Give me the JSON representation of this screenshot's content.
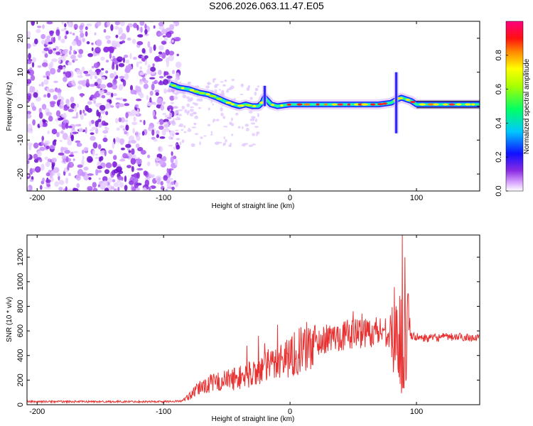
{
  "title": "S206.2026.063.11.47.E05",
  "chart_data": [
    {
      "type": "heatmap",
      "name": "spectrogram",
      "xlabel": "Height of straight line (km)",
      "ylabel": "Frequency (Hz)",
      "xlim": [
        -208,
        150
      ],
      "ylim": [
        -25,
        25
      ],
      "xticks": [
        -200,
        -100,
        0,
        100
      ],
      "xtick_labels": [
        "-200",
        "-100",
        "0",
        "100"
      ],
      "yticks": [
        -20,
        -10,
        0,
        10,
        20
      ],
      "ytick_labels": [
        "-20",
        "-10",
        "0",
        "10",
        "20"
      ],
      "noise_region_x": [
        -208,
        -88
      ],
      "signal_track": {
        "x": [
          -95,
          -88,
          -80,
          -72,
          -65,
          -58,
          -52,
          -45,
          -40,
          -35,
          -30,
          -25,
          -22,
          -20,
          -15,
          -10,
          0,
          10,
          20,
          30,
          40,
          50,
          60,
          70,
          80,
          85,
          88,
          92,
          96,
          100,
          110,
          120,
          130,
          140,
          150
        ],
        "y": [
          6.5,
          5.5,
          5,
          4,
          3.5,
          2.5,
          1.5,
          0.5,
          0,
          0.5,
          0,
          0,
          1,
          2.5,
          0.5,
          0,
          0.5,
          0.5,
          0.5,
          0.5,
          0.5,
          0.5,
          0.5,
          0.5,
          1,
          2,
          2.5,
          2,
          1.5,
          0.5,
          0.5,
          0.5,
          0.5,
          0.5,
          0.5
        ]
      },
      "features": [
        {
          "x": -20,
          "y_range": [
            0,
            6
          ]
        },
        {
          "x": 84,
          "y_range": [
            -8,
            10
          ]
        }
      ]
    },
    {
      "type": "colorbar",
      "label": "Normalized spectral amplitude",
      "range": [
        0,
        1
      ],
      "ticks": [
        0.0,
        0.2,
        0.4,
        0.6,
        0.8
      ],
      "tick_labels": [
        "0.0",
        "0.2",
        "0.4",
        "0.6",
        "0.8"
      ],
      "colormap": [
        "#ffffff",
        "#cc66ff",
        "#6600cc",
        "#0000ff",
        "#00ccff",
        "#00ff66",
        "#ffff00",
        "#ff8800",
        "#ff0000",
        "#ff0099"
      ]
    },
    {
      "type": "line",
      "name": "snr",
      "xlabel": "Height of straight line (km)",
      "ylabel": "SNR (10 * v/v)",
      "xlim": [
        -208,
        150
      ],
      "ylim": [
        0,
        1380
      ],
      "xticks": [
        -200,
        -100,
        0,
        100
      ],
      "xtick_labels": [
        "-200",
        "-100",
        "0",
        "100"
      ],
      "yticks": [
        0,
        200,
        400,
        600,
        800,
        1000,
        1200
      ],
      "ytick_labels": [
        "0",
        "200",
        "400",
        "600",
        "800",
        "1000",
        "1200"
      ],
      "color": "#e83232",
      "trend": {
        "x": [
          -208,
          -150,
          -100,
          -85,
          -78,
          -70,
          -60,
          -50,
          -40,
          -30,
          -20,
          -10,
          0,
          10,
          20,
          30,
          40,
          50,
          60,
          70,
          80,
          85,
          88,
          90,
          92,
          95,
          100,
          110,
          120,
          130,
          140,
          150
        ],
        "y": [
          25,
          25,
          25,
          30,
          80,
          150,
          180,
          200,
          220,
          250,
          300,
          350,
          400,
          450,
          500,
          540,
          560,
          580,
          590,
          600,
          600,
          580,
          550,
          500,
          550,
          560,
          550,
          540,
          550,
          550,
          550,
          540
        ]
      },
      "spikes": [
        {
          "x": -34,
          "y": 480
        },
        {
          "x": -25,
          "y": 560
        },
        {
          "x": -20,
          "y": 500
        },
        {
          "x": -10,
          "y": 650
        },
        {
          "x": 50,
          "y": 760
        },
        {
          "x": 57,
          "y": 740
        },
        {
          "x": 84,
          "y": 800
        },
        {
          "x": 89,
          "y": 1380
        },
        {
          "x": 91,
          "y": 1200
        }
      ]
    }
  ]
}
